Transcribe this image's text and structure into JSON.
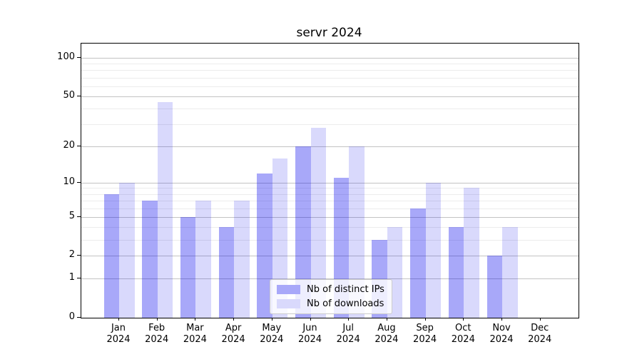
{
  "chart_data": {
    "type": "bar",
    "title": "servr 2024",
    "categories": [
      "Jan 2024",
      "Feb 2024",
      "Mar 2024",
      "Apr 2024",
      "May 2024",
      "Jun 2024",
      "Jul 2024",
      "Aug 2024",
      "Sep 2024",
      "Oct 2024",
      "Nov 2024",
      "Dec 2024"
    ],
    "series": [
      {
        "name": "Nb of distinct IPs",
        "values": [
          8,
          7,
          5,
          4,
          12,
          20,
          11,
          3,
          6,
          4,
          2,
          0
        ],
        "color": "rgba(0,0,238,0.34)",
        "legend_color": "#a8a8f9"
      },
      {
        "name": "Nb of downloads",
        "values": [
          10,
          45,
          7,
          7,
          16,
          28,
          20,
          4,
          10,
          9,
          4,
          0
        ],
        "color": "rgba(0,0,238,0.15)",
        "legend_color": "#d9d9fc"
      }
    ],
    "yscale": "log1p",
    "ylim": [
      0,
      120
    ],
    "yticks": [
      0,
      1,
      2,
      5,
      10,
      20,
      50,
      100
    ],
    "minor_gridlines": [
      3,
      4,
      6,
      7,
      8,
      9,
      30,
      40,
      60,
      70,
      80,
      90
    ],
    "grid": true,
    "legend_position": "lower center",
    "xlabel": "",
    "ylabel": ""
  },
  "colors": {
    "major_grid": "#c3c3c3",
    "minor_grid": "#ececec",
    "spine": "#000000",
    "text": "#000000",
    "legend_border": "#cccccc"
  }
}
